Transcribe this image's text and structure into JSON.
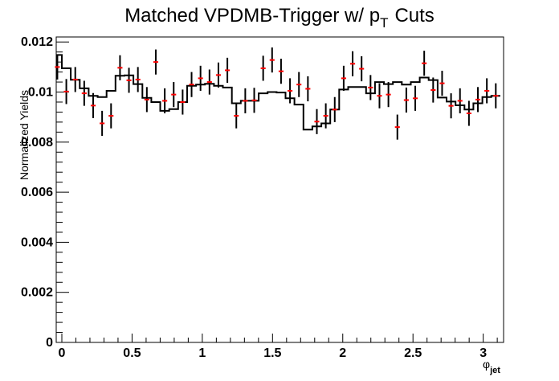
{
  "chart_data": {
    "type": "histogram",
    "title": "Matched VPDMB-Trigger w/ p",
    "title_sub": "T",
    "title_tail": "Cuts",
    "xlabel": "φ",
    "xlabel_sub": "jet",
    "ylabel": "Normalized Yields",
    "xlim": [
      -0.04,
      3.145
    ],
    "ylim": [
      0.0,
      0.0122
    ],
    "x_ticks": [
      {
        "value": 0,
        "label": "0"
      },
      {
        "value": 0.5,
        "label": "0.5"
      },
      {
        "value": 1,
        "label": "1"
      },
      {
        "value": 1.5,
        "label": "1.5"
      },
      {
        "value": 2,
        "label": "2"
      },
      {
        "value": 2.5,
        "label": "2.5"
      },
      {
        "value": 3,
        "label": "3"
      }
    ],
    "y_ticks": [
      {
        "value": 0,
        "label": "0"
      },
      {
        "value": 0.002,
        "label": "0.002"
      },
      {
        "value": 0.004,
        "label": "0.004"
      },
      {
        "value": 0.006,
        "label": "0.006"
      },
      {
        "value": 0.008,
        "label": "0.008"
      },
      {
        "value": 0.01,
        "label": "0.01"
      },
      {
        "value": 0.012,
        "label": "0.012"
      }
    ],
    "bin_width": 0.0637,
    "series": [
      {
        "style": "step",
        "color": "#000000",
        "x": [
          -0.0318,
          0.0319,
          0.0956,
          0.1593,
          0.223,
          0.2867,
          0.3504,
          0.4141,
          0.4778,
          0.5415,
          0.6052,
          0.6689,
          0.7326,
          0.7963,
          0.86,
          0.9237,
          0.9874,
          1.0511,
          1.1148,
          1.1785,
          1.2422,
          1.3059,
          1.3696,
          1.4333,
          1.497,
          1.5607,
          1.6244,
          1.6881,
          1.7518,
          1.8155,
          1.8792,
          1.9429,
          2.0066,
          2.0703,
          2.134,
          2.1977,
          2.2614,
          2.3251,
          2.3888,
          2.4525,
          2.5162,
          2.5799,
          2.6436,
          2.7073,
          2.771,
          2.8347,
          2.8984,
          2.9621,
          3.0258,
          3.0895
        ],
        "y": [
          0.01148,
          0.01095,
          0.01049,
          0.01015,
          0.00985,
          0.0098,
          0.01005,
          0.01065,
          0.01067,
          0.01032,
          0.00977,
          0.0096,
          0.00925,
          0.00932,
          0.0096,
          0.01025,
          0.0103,
          0.01033,
          0.01025,
          0.01018,
          0.00955,
          0.00965,
          0.00965,
          0.00995,
          0.01,
          0.00998,
          0.00975,
          0.0095,
          0.0085,
          0.00863,
          0.00875,
          0.0093,
          0.0101,
          0.0102,
          0.0102,
          0.00995,
          0.0104,
          0.01032,
          0.0104,
          0.0103,
          0.0104,
          0.01058,
          0.01048,
          0.00978,
          0.00962,
          0.00947,
          0.0093,
          0.00955,
          0.0098,
          0.00985
        ]
      },
      {
        "style": "points",
        "color": "#ff0000",
        "errbar_color": "#000000",
        "x": [
          -0.0318,
          0.0319,
          0.0956,
          0.1593,
          0.223,
          0.2867,
          0.3504,
          0.4141,
          0.4778,
          0.5415,
          0.6052,
          0.6689,
          0.7326,
          0.7963,
          0.86,
          0.9237,
          0.9874,
          1.0511,
          1.1148,
          1.1785,
          1.2422,
          1.3059,
          1.3696,
          1.4333,
          1.497,
          1.5607,
          1.6244,
          1.6881,
          1.7518,
          1.8155,
          1.8792,
          1.9429,
          2.0066,
          2.0703,
          2.134,
          2.1977,
          2.2614,
          2.3251,
          2.3888,
          2.4525,
          2.5162,
          2.5799,
          2.6436,
          2.7073,
          2.771,
          2.8347,
          2.8984,
          2.9621,
          3.0258,
          3.0895
        ],
        "y": [
          0.011,
          0.01002,
          0.0105,
          0.00995,
          0.00946,
          0.00875,
          0.00905,
          0.01097,
          0.01047,
          0.0105,
          0.0097,
          0.0112,
          0.00965,
          0.0099,
          0.0096,
          0.0103,
          0.01055,
          0.0104,
          0.01068,
          0.01087,
          0.00905,
          0.00965,
          0.00967,
          0.01095,
          0.01128,
          0.01083,
          0.01005,
          0.0103,
          0.01013,
          0.00882,
          0.00905,
          0.0093,
          0.01055,
          0.01113,
          0.01093,
          0.01018,
          0.00985,
          0.0099,
          0.0086,
          0.00968,
          0.00975,
          0.01115,
          0.01008,
          0.01035,
          0.00945,
          0.00965,
          0.00915,
          0.0097,
          0.01005,
          0.00985
        ],
        "err": [
          0.0005,
          0.0005,
          0.0005,
          0.0005,
          0.0005,
          0.0005,
          0.0005,
          0.0005,
          0.0005,
          0.0005,
          0.0005,
          0.0005,
          0.0005,
          0.0005,
          0.0005,
          0.0005,
          0.0005,
          0.0005,
          0.0005,
          0.0005,
          0.0005,
          0.0005,
          0.0005,
          0.0005,
          0.0005,
          0.0005,
          0.0005,
          0.0005,
          0.0005,
          0.0005,
          0.0005,
          0.0005,
          0.0005,
          0.0005,
          0.0005,
          0.0005,
          0.0005,
          0.0005,
          0.0005,
          0.0005,
          0.0005,
          0.0005,
          0.0005,
          0.0005,
          0.0005,
          0.0005,
          0.0005,
          0.0005,
          0.0005,
          0.0005
        ]
      }
    ]
  }
}
